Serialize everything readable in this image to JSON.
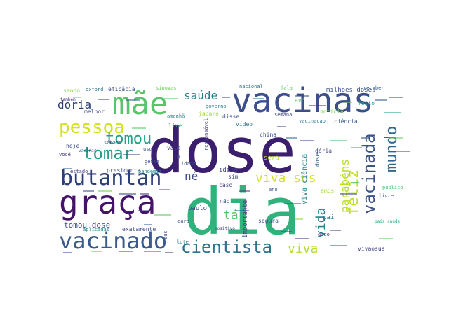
{
  "words": [
    {
      "text": "dose",
      "color": "#3b1f6e"
    },
    {
      "text": "dia",
      "color": "#2fb27c"
    },
    {
      "text": "vacinas",
      "color": "#3d4f8a"
    },
    {
      "text": "mãe",
      "color": "#59c46a"
    },
    {
      "text": "graça",
      "color": "#45136a"
    },
    {
      "text": "vacinado",
      "color": "#3a5a8b"
    },
    {
      "text": "butantan",
      "color": "#2d3f78"
    },
    {
      "text": "pessoa",
      "color": "#d3e11b"
    },
    {
      "text": "tomou",
      "color": "#20a486"
    },
    {
      "text": "tomar",
      "color": "#2a9d8a"
    },
    {
      "text": "cientista",
      "color": "#2c728e"
    },
    {
      "text": "viva",
      "color": "#b5de2b"
    },
    {
      "text": "vacinada",
      "color": "#3b528b"
    },
    {
      "text": "mundo",
      "color": "#31688e"
    },
    {
      "text": "feliz",
      "color": "#c2df23"
    },
    {
      "text": "saúde",
      "color": "#277f8e"
    },
    {
      "text": "doria",
      "color": "#2a3f6f"
    },
    {
      "text": "viva sus",
      "color": "#d6e22b"
    },
    {
      "text": "vida",
      "color": "#23898e"
    },
    {
      "text": "parabéns",
      "color": "#b8de29"
    },
    {
      "text": "né",
      "color": "#3f4a8a"
    },
    {
      "text": "tá",
      "color": "#5ac864"
    },
    {
      "text": "viva ciência",
      "color": "#27808e"
    },
    {
      "text": "tomou dose",
      "color": "#3c4f8a"
    },
    {
      "text": "idoso",
      "color": "#404387"
    },
    {
      "text": "paulo",
      "color": "#414487"
    },
    {
      "text": "eficácia",
      "color": "#3d4d8a"
    },
    {
      "text": "sinovas",
      "color": "#6ccd5a"
    },
    {
      "text": "nacional",
      "color": "#2c728e"
    },
    {
      "text": "fala",
      "color": "#5ec962"
    },
    {
      "text": "milhões doses",
      "color": "#3b528b"
    },
    {
      "text": "receber",
      "color": "#355f8d"
    },
    {
      "text": "sendo",
      "color": "#8fd744"
    },
    {
      "text": "oxford",
      "color": "#2a788e"
    },
    {
      "text": "também",
      "color": "#453781"
    },
    {
      "text": "melhor",
      "color": "#3f4788"
    },
    {
      "text": "hoje",
      "color": "#3e4989"
    },
    {
      "text": "você",
      "color": "#46337f"
    },
    {
      "text": "governo",
      "color": "#24868e"
    },
    {
      "text": "jacaré",
      "color": "#9dd93b"
    },
    {
      "text": "disse",
      "color": "#3e4a89"
    },
    {
      "text": "amanhã",
      "color": "#20928c"
    },
    {
      "text": "live",
      "color": "#31b57b"
    },
    {
      "text": "vídeo",
      "color": "#2e6e8e"
    },
    {
      "text": "semana",
      "color": "#3f4889"
    },
    {
      "text": "avó",
      "color": "#5ec962"
    },
    {
      "text": "notícia",
      "color": "#6ece58"
    },
    {
      "text": "ciência",
      "color": "#365c8d"
    },
    {
      "text": "feito",
      "color": "#20a386"
    },
    {
      "text": "vacinacao",
      "color": "#2a788e"
    },
    {
      "text": "china",
      "color": "#3e4c8a"
    },
    {
      "text": "será",
      "color": "#b5de2b"
    },
    {
      "text": "dória",
      "color": "#3f4788"
    },
    {
      "text": "dose",
      "color": "#355f8d"
    },
    {
      "text": "ano",
      "color": "#3a548c"
    },
    {
      "text": "amos",
      "color": "#a5db36"
    },
    {
      "text": "pai",
      "color": "#2a788e"
    },
    {
      "text": "sim",
      "color": "#3e4a89"
    },
    {
      "text": "caso",
      "color": "#424086"
    },
    {
      "text": "não",
      "color": "#3a548c"
    },
    {
      "text": "segura",
      "color": "#3d4e8a"
    },
    {
      "text": "importante",
      "color": "#433e85"
    },
    {
      "text": "positivo",
      "color": "#3e4989"
    },
    {
      "text": "dado",
      "color": "#4a3b7a"
    },
    {
      "text": "vivaosus",
      "color": "#404588"
    },
    {
      "text": "país saúde",
      "color": "#25ab82"
    },
    {
      "text": "público",
      "color": "#4ac16d"
    },
    {
      "text": "livre",
      "color": "#3d4d8a"
    },
    {
      "text": "presidente",
      "color": "#3c4f8a"
    },
    {
      "text": "estado",
      "color": "#453882"
    },
    {
      "text": "pandemia",
      "color": "#25848e"
    },
    {
      "text": "gente",
      "color": "#3d4e8a"
    },
    {
      "text": "uso",
      "color": "#3b528b"
    },
    {
      "text": "vale",
      "color": "#3e4a89"
    },
    {
      "text": "lô",
      "color": "#3f4788"
    },
    {
      "text": "sábado",
      "color": "#3e4989"
    },
    {
      "text": "vacinar",
      "color": "#3f4889"
    },
    {
      "text": "idade",
      "color": "#3b528b"
    },
    {
      "text": "responsável",
      "color": "#404588"
    },
    {
      "text": "exatamente",
      "color": "#3e4a89"
    },
    {
      "text": "aplicadas",
      "color": "#238a8d"
    },
    {
      "text": "cara",
      "color": "#3b528b"
    },
    {
      "text": "sus",
      "color": "#404588"
    },
    {
      "text": "lote",
      "color": "#25848e"
    }
  ]
}
